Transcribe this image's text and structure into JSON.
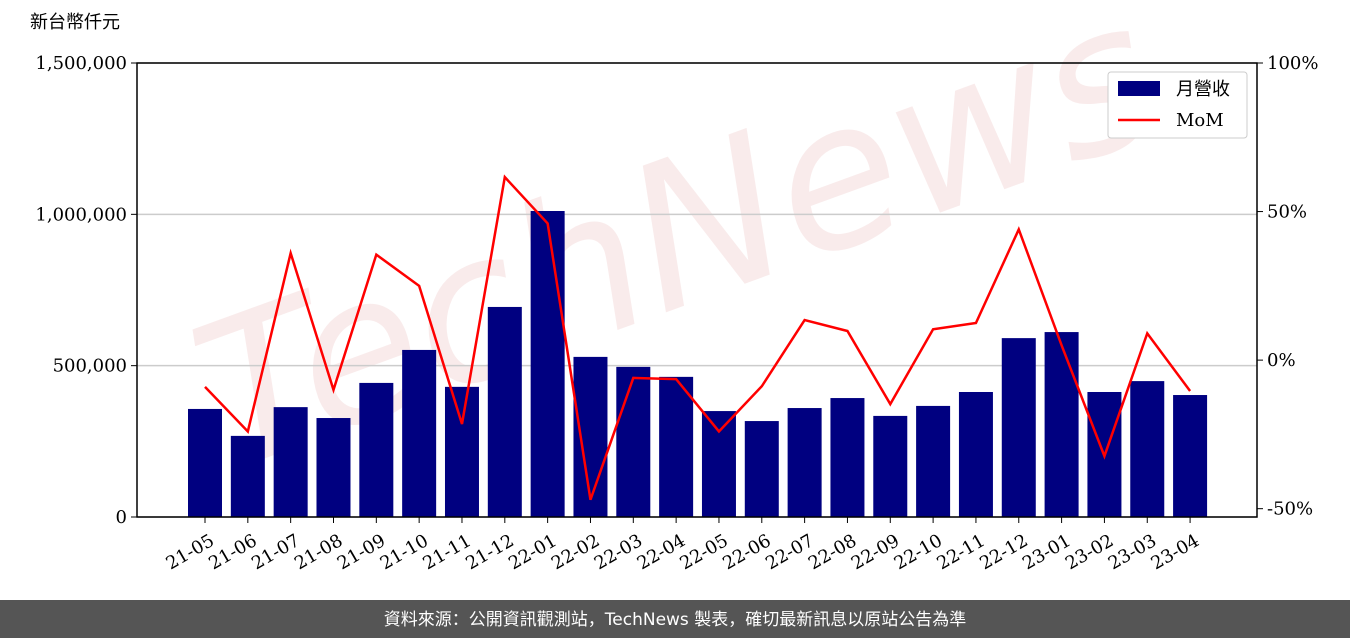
{
  "chart_data": {
    "type": "bar-line",
    "y_label": "新台幣仟元",
    "watermark": "TechNews",
    "categories": [
      "21-05",
      "21-06",
      "21-07",
      "21-08",
      "21-09",
      "21-10",
      "21-11",
      "21-12",
      "22-01",
      "22-02",
      "22-03",
      "22-04",
      "22-05",
      "22-06",
      "22-07",
      "22-08",
      "22-09",
      "22-10",
      "22-11",
      "22-12",
      "23-01",
      "23-02",
      "23-03",
      "23-04"
    ],
    "series": [
      {
        "name": "月營收",
        "color": "#000080",
        "values": [
          357000,
          268000,
          363000,
          327000,
          443000,
          552000,
          430000,
          694000,
          1011000,
          529000,
          496000,
          463000,
          350000,
          317000,
          360000,
          393000,
          334000,
          367000,
          413000,
          591000,
          611000,
          413000,
          449000,
          403000
        ]
      },
      {
        "name": "MoM",
        "color": "#ff0000",
        "axis": "y2",
        "values": [
          -9,
          -24,
          36,
          -10,
          35.5,
          25,
          -21.5,
          61.6,
          46,
          -47,
          -6,
          -6.4,
          -24,
          -8.8,
          13.5,
          9.8,
          -14.8,
          10.4,
          12.5,
          44,
          5,
          -32.3,
          9,
          -10.4
        ]
      }
    ],
    "ylim": [
      0,
      1500000
    ],
    "yticks": [
      0,
      {
        "value": 500000,
        "label": "500,000"
      },
      {
        "value": 1000000,
        "label": "1,000,000"
      },
      {
        "value": 1500000,
        "label": "1,500,000"
      }
    ],
    "y2lim": [
      -52.8,
      100
    ],
    "y2ticks": [
      {
        "value": -50,
        "label": "-50%"
      },
      {
        "value": 0,
        "label": "0%"
      },
      {
        "value": 50,
        "label": "50%"
      },
      {
        "value": 100,
        "label": "100%"
      }
    ],
    "grid": true,
    "legend": "upper right",
    "footer": "資料來源：公開資訊觀測站，TechNews 製表，確切最新訊息以原站公告為準"
  }
}
